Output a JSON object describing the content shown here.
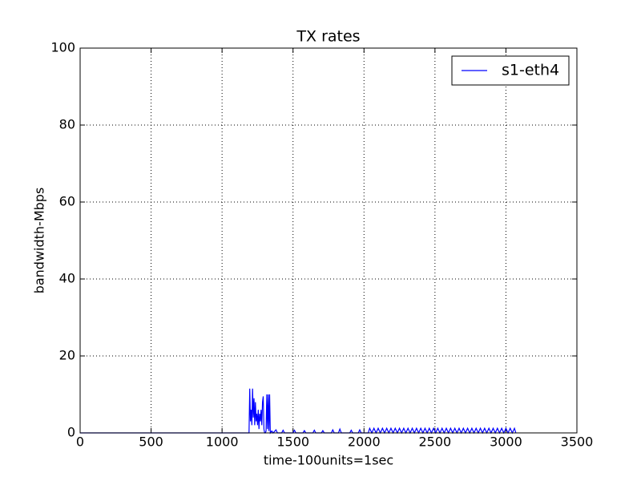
{
  "chart_data": {
    "type": "line",
    "title": "TX rates",
    "xlabel": "time-100units=1sec",
    "ylabel": "bandwidth-Mbps",
    "xlim": [
      0,
      3500
    ],
    "ylim": [
      0,
      100
    ],
    "xticks": [
      0,
      500,
      1000,
      1500,
      2000,
      2500,
      3000,
      3500
    ],
    "yticks": [
      0,
      20,
      40,
      60,
      80,
      100
    ],
    "grid": true,
    "legend": "upper right",
    "x": [
      0,
      1180,
      1190,
      1195,
      1200,
      1205,
      1210,
      1215,
      1220,
      1225,
      1230,
      1235,
      1240,
      1245,
      1250,
      1255,
      1260,
      1265,
      1270,
      1275,
      1280,
      1285,
      1290,
      1295,
      1300,
      1305,
      1310,
      1315,
      1320,
      1325,
      1330,
      1335,
      1340,
      1350,
      1360,
      1380,
      1390,
      1420,
      1430,
      1440,
      1500,
      1510,
      1520,
      1570,
      1580,
      1590,
      1640,
      1650,
      1660,
      1700,
      1710,
      1720,
      1770,
      1780,
      1790,
      1820,
      1830,
      1840,
      1900,
      1910,
      1920,
      1960,
      1970,
      1980,
      2030,
      2040,
      2055,
      2070,
      2085,
      2100,
      2115,
      2130,
      2145,
      2160,
      2175,
      2190,
      2205,
      2220,
      2235,
      2250,
      2265,
      2280,
      2295,
      2310,
      2325,
      2340,
      2355,
      2370,
      2385,
      2400,
      2415,
      2430,
      2445,
      2460,
      2475,
      2490,
      2505,
      2520,
      2535,
      2550,
      2565,
      2580,
      2595,
      2610,
      2625,
      2640,
      2655,
      2670,
      2685,
      2700,
      2715,
      2730,
      2745,
      2760,
      2775,
      2790,
      2805,
      2820,
      2835,
      2850,
      2865,
      2880,
      2895,
      2910,
      2925,
      2940,
      2955,
      2970,
      2985,
      3000,
      3015,
      3030,
      3045,
      3060,
      3070
    ],
    "series": [
      {
        "name": "s1-eth4",
        "color": "#0000ff",
        "values": [
          0,
          0,
          0,
          11.5,
          3,
          6,
          2,
          11.5,
          4,
          9,
          2,
          8,
          3,
          5,
          2,
          6,
          1,
          5,
          3,
          6,
          2,
          8,
          9.5,
          1,
          0,
          0,
          0.5,
          10,
          1,
          10,
          0.5,
          10,
          0,
          0.5,
          0,
          0.8,
          0,
          0,
          0.7,
          0,
          0,
          0.7,
          0,
          0,
          0.6,
          0,
          0,
          0.7,
          0,
          0,
          0.6,
          0,
          0,
          0.8,
          0,
          0,
          1,
          0,
          0,
          0.7,
          0,
          0,
          0.8,
          0,
          0,
          1.2,
          0,
          1.2,
          0,
          1.2,
          0,
          1.2,
          0,
          1.2,
          0,
          1.2,
          0,
          1.2,
          0,
          1.2,
          0,
          1.2,
          0,
          1.2,
          0,
          1.2,
          0,
          1.2,
          0,
          1.2,
          0,
          1.2,
          0,
          1.2,
          0,
          1.2,
          0,
          1.2,
          0,
          1.2,
          0,
          1.2,
          0,
          1.2,
          0,
          1.2,
          0,
          1.2,
          0,
          1.2,
          0,
          1.2,
          0,
          1.2,
          0,
          1.2,
          0,
          1.2,
          0,
          1.2,
          0,
          1.2,
          0,
          1.2,
          0,
          1.2,
          0,
          1.2,
          0,
          1.2,
          0,
          1.2,
          0,
          1.2,
          0
        ]
      }
    ]
  }
}
